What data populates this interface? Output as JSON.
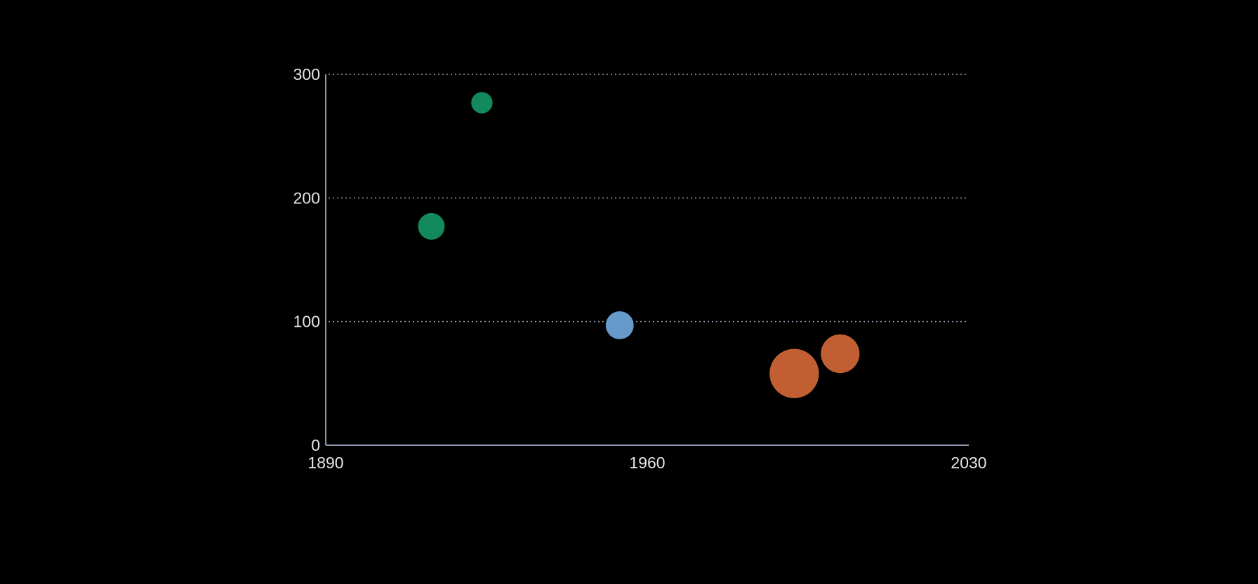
{
  "chart_data": {
    "type": "scatter",
    "title": "",
    "xlabel": "",
    "ylabel": "",
    "xlim": [
      1890,
      2030
    ],
    "ylim": [
      0,
      300
    ],
    "x_ticks": [
      1890,
      1960,
      2030
    ],
    "y_ticks": [
      0,
      100,
      200,
      300
    ],
    "grid": "horizontal-dotted",
    "legend": "none",
    "points": [
      {
        "x": 1913,
        "y": 177,
        "size": 1.0,
        "color": "#138a5e"
      },
      {
        "x": 1924,
        "y": 277,
        "size": 0.8,
        "color": "#138a5e"
      },
      {
        "x": 1954,
        "y": 97,
        "size": 1.05,
        "color": "#6699cc"
      },
      {
        "x": 1992,
        "y": 58,
        "size": 1.85,
        "color": "#c15f33"
      },
      {
        "x": 2002,
        "y": 74,
        "size": 1.45,
        "color": "#c15f33"
      }
    ]
  }
}
